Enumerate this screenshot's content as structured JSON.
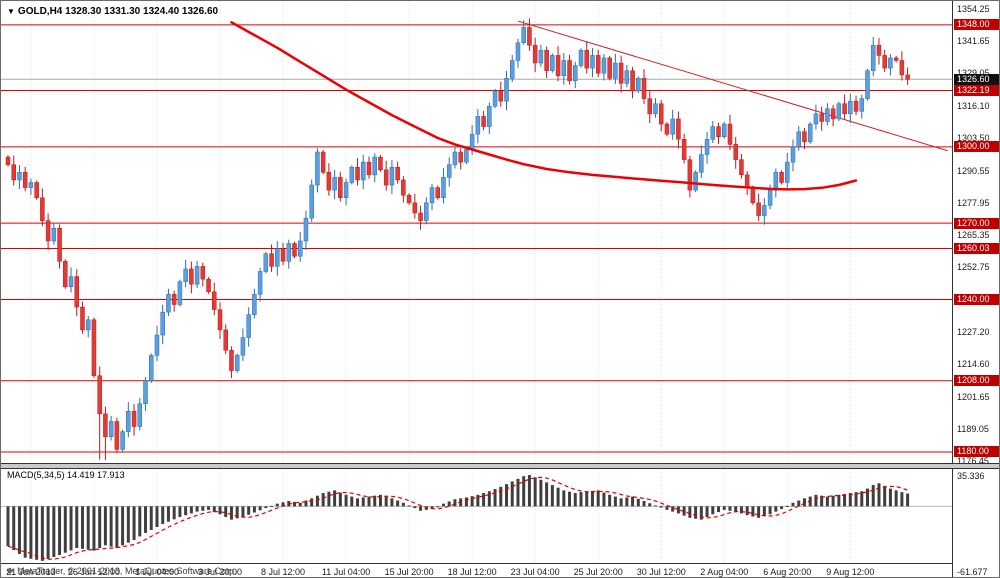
{
  "header": {
    "symbol": "GOLD,H4",
    "ohlc": "1328.30 1331.30 1324.40 1326.60"
  },
  "indicator": {
    "label": "MACD(5,34,5) 14.419 17.913"
  },
  "footer": {
    "credit": "MetaTrader, © 2001-2013, MetaQuotes Software Corp."
  },
  "macd_axis": {
    "max_label": "35.336",
    "min_label": "-61.677"
  },
  "colors": {
    "up_fill": "#5aa0e0",
    "up_stroke": "#2b6cb0",
    "down_fill": "#e53935",
    "down_stroke": "#b71c1c",
    "level_line": "#e00000",
    "level_badge": "#c00000",
    "bid_badge": "#101010",
    "bid_line": "#a8a8a8",
    "ma_line": "#ee0000",
    "trendline": "#cc2222",
    "grid": "#d6d6d6",
    "macd_bar": "#3f3f3f",
    "macd_signal": "#e00000",
    "macd_zero": "#b8b8b8"
  },
  "chart_data": {
    "type": "candlestick",
    "title": "GOLD,H4",
    "timeframe": "H4",
    "current_ohlc": {
      "open": 1328.3,
      "high": 1331.3,
      "low": 1324.4,
      "close": 1326.6
    },
    "y_axis": {
      "top": 1354.25,
      "bottom": 1176.45,
      "tick_labels": [
        1354.25,
        1341.65,
        1329.05,
        1316.1,
        1303.5,
        1290.55,
        1277.95,
        1265.35,
        1252.75,
        1227.2,
        1214.6,
        1201.65,
        1189.05,
        1176.45
      ]
    },
    "x_axis": {
      "labels": [
        "21 Jun 2013",
        "26 Jun 12:00",
        "1 Jul 04:00",
        "3 Jul 20:00",
        "8 Jul 12:00",
        "11 Jul 04:00",
        "15 Jul 20:00",
        "18 Jul 12:00",
        "23 Jul 04:00",
        "25 Jul 20:00",
        "30 Jul 12:00",
        "2 Aug 04:00",
        "6 Aug 20:00",
        "9 Aug 12:00"
      ],
      "label_indices": [
        4,
        15,
        26,
        37,
        48,
        59,
        70,
        81,
        92,
        103,
        114,
        125,
        136,
        147
      ]
    },
    "horizontal_levels": [
      1348.0,
      1322.19,
      1300.0,
      1270.0,
      1260.03,
      1240.0,
      1208.0,
      1180.0
    ],
    "bid_price": 1326.6,
    "closes": [
      1293,
      1287,
      1290,
      1284,
      1286,
      1280,
      1271,
      1263,
      1268,
      1255,
      1245,
      1249,
      1237,
      1228,
      1232,
      1210,
      1195,
      1186,
      1192,
      1181,
      1188,
      1196,
      1190,
      1199,
      1208,
      1218,
      1226,
      1235,
      1242,
      1238,
      1247,
      1252,
      1246,
      1253,
      1248,
      1243,
      1236,
      1228,
      1220,
      1212,
      1218,
      1225,
      1234,
      1242,
      1251,
      1258,
      1253,
      1260,
      1255,
      1262,
      1257,
      1263,
      1272,
      1285,
      1298,
      1290,
      1283,
      1288,
      1280,
      1286,
      1292,
      1287,
      1294,
      1289,
      1296,
      1291,
      1285,
      1292,
      1287,
      1281,
      1278,
      1274,
      1271,
      1278,
      1284,
      1280,
      1288,
      1293,
      1298,
      1294,
      1299,
      1305,
      1312,
      1308,
      1316,
      1322,
      1318,
      1327,
      1334,
      1341,
      1347,
      1340,
      1333,
      1338,
      1330,
      1336,
      1328,
      1334,
      1326,
      1332,
      1338,
      1331,
      1336,
      1329,
      1335,
      1327,
      1333,
      1325,
      1330,
      1322,
      1327,
      1319,
      1313,
      1317,
      1309,
      1305,
      1311,
      1303,
      1295,
      1283,
      1290,
      1297,
      1303,
      1308,
      1304,
      1309,
      1301,
      1295,
      1289,
      1284,
      1278,
      1273,
      1277,
      1283,
      1290,
      1286,
      1294,
      1300,
      1306,
      1302,
      1309,
      1313,
      1310,
      1315,
      1311,
      1317,
      1313,
      1318,
      1314,
      1319,
      1330,
      1340,
      1336,
      1331,
      1335,
      1334,
      1328.3,
      1326.6
    ],
    "wick_overrides": [
      {
        "i": 16,
        "low": 1177.0
      },
      {
        "i": 17,
        "low": 1176.8
      },
      {
        "i": 19,
        "low": 1179.5
      },
      {
        "i": 90,
        "high": 1349.8
      },
      {
        "i": 151,
        "high": 1343.2
      },
      {
        "i": 157,
        "high": 1331.3,
        "low": 1324.4
      }
    ],
    "moving_average": {
      "points": [
        [
          39,
          1349
        ],
        [
          43,
          1344
        ],
        [
          47,
          1339
        ],
        [
          51,
          1333.5
        ],
        [
          55,
          1328
        ],
        [
          59,
          1322.5
        ],
        [
          63,
          1317.5
        ],
        [
          67,
          1312.5
        ],
        [
          71,
          1308
        ],
        [
          75,
          1303.5
        ],
        [
          78,
          1301
        ],
        [
          81,
          1299
        ],
        [
          84,
          1297
        ],
        [
          87,
          1295
        ],
        [
          90,
          1293.2
        ],
        [
          94,
          1291.3
        ],
        [
          98,
          1290
        ],
        [
          102,
          1289
        ],
        [
          106,
          1288.2
        ],
        [
          110,
          1287.4
        ],
        [
          114,
          1286.7
        ],
        [
          118,
          1286
        ],
        [
          122,
          1285.2
        ],
        [
          126,
          1284.5
        ],
        [
          130,
          1283.9
        ],
        [
          133,
          1283.5
        ],
        [
          136,
          1283.3
        ],
        [
          139,
          1283.4
        ],
        [
          142,
          1283.9
        ],
        [
          145,
          1285
        ],
        [
          148,
          1286.8
        ]
      ]
    },
    "trendline": {
      "from": [
        89,
        1349.5
      ],
      "to": [
        164,
        1298.5
      ]
    },
    "macd": {
      "params": [
        5,
        34,
        5
      ],
      "current_main": 14.419,
      "current_signal": 17.913,
      "axis_max": 35.336,
      "axis_min": -61.677,
      "main_anchors": [
        [
          0,
          -45
        ],
        [
          3,
          -58
        ],
        [
          6,
          -61.5
        ],
        [
          9,
          -55
        ],
        [
          12,
          -47
        ],
        [
          15,
          -50
        ],
        [
          17,
          -44
        ],
        [
          19,
          -47
        ],
        [
          22,
          -38
        ],
        [
          24,
          -30
        ],
        [
          27,
          -20
        ],
        [
          30,
          -12
        ],
        [
          33,
          -6
        ],
        [
          35,
          -4
        ],
        [
          37,
          -9
        ],
        [
          39,
          -15
        ],
        [
          41,
          -12
        ],
        [
          43,
          -7
        ],
        [
          45,
          -2
        ],
        [
          47,
          3
        ],
        [
          49,
          6
        ],
        [
          51,
          4
        ],
        [
          53,
          9
        ],
        [
          55,
          15
        ],
        [
          57,
          18
        ],
        [
          59,
          13
        ],
        [
          61,
          9
        ],
        [
          63,
          11
        ],
        [
          65,
          13
        ],
        [
          67,
          9
        ],
        [
          69,
          4
        ],
        [
          71,
          -2
        ],
        [
          72,
          -5
        ],
        [
          74,
          -3
        ],
        [
          76,
          3
        ],
        [
          78,
          8
        ],
        [
          80,
          10
        ],
        [
          82,
          13
        ],
        [
          84,
          17
        ],
        [
          86,
          22
        ],
        [
          88,
          28
        ],
        [
          90,
          34
        ],
        [
          91,
          35.3
        ],
        [
          93,
          30
        ],
        [
          95,
          24
        ],
        [
          97,
          18
        ],
        [
          99,
          15
        ],
        [
          101,
          17
        ],
        [
          103,
          18
        ],
        [
          105,
          13
        ],
        [
          107,
          9
        ],
        [
          109,
          11
        ],
        [
          111,
          6
        ],
        [
          113,
          1
        ],
        [
          115,
          -4
        ],
        [
          117,
          -8
        ],
        [
          119,
          -13
        ],
        [
          121,
          -15
        ],
        [
          123,
          -9
        ],
        [
          125,
          -4
        ],
        [
          127,
          -6
        ],
        [
          129,
          -10
        ],
        [
          131,
          -13
        ],
        [
          133,
          -9
        ],
        [
          135,
          -3
        ],
        [
          137,
          4
        ],
        [
          139,
          9
        ],
        [
          141,
          13
        ],
        [
          143,
          11
        ],
        [
          145,
          13
        ],
        [
          147,
          15
        ],
        [
          149,
          17
        ],
        [
          150,
          20
        ],
        [
          151,
          24
        ],
        [
          152,
          26
        ],
        [
          153,
          23
        ],
        [
          154,
          20
        ],
        [
          155,
          18
        ],
        [
          156,
          16
        ],
        [
          157,
          14.419
        ]
      ]
    }
  }
}
